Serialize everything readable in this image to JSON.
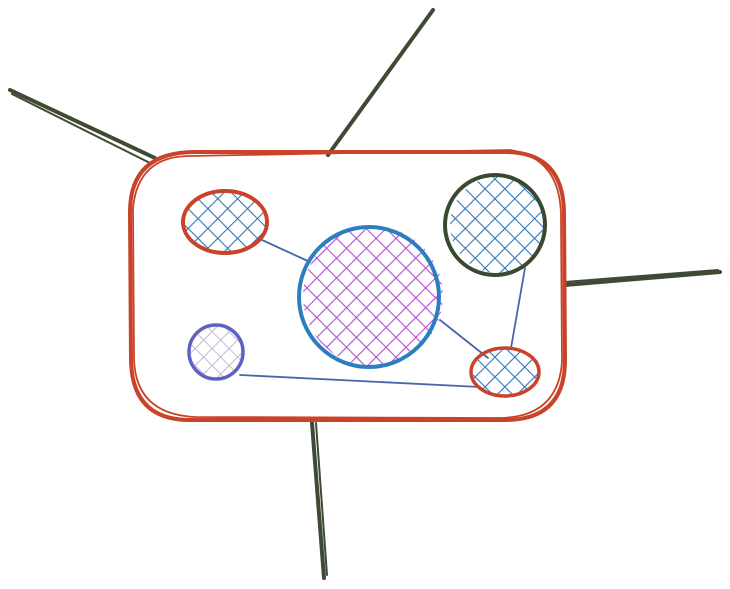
{
  "colors": {
    "background": "#ffffff",
    "frame_stroke": "#c9432a",
    "spike_stroke": "#3f4a34",
    "connector_stroke": "#4567a8",
    "hatch_blue": "#2f78b8",
    "hatch_purple": "#b14fd0",
    "hatch_lavender": "#b8b4cc",
    "ring_red": "#c9432a",
    "ring_blue": "#2c7fbf",
    "ring_dark": "#3a4a30",
    "ring_indigo": "#5d62c2"
  },
  "nodes": [
    {
      "id": "node-top-left",
      "fill": "hatch_blue",
      "ring": "ring_red"
    },
    {
      "id": "node-center",
      "fill": "hatch_purple",
      "ring": "ring_blue"
    },
    {
      "id": "node-top-right",
      "fill": "hatch_blue",
      "ring": "ring_dark"
    },
    {
      "id": "node-bottom-left",
      "fill": "hatch_lavender",
      "ring": "ring_indigo"
    },
    {
      "id": "node-bottom-right",
      "fill": "hatch_blue",
      "ring": "ring_red"
    }
  ],
  "edges": [
    {
      "from": "node-top-left",
      "to": "node-center"
    },
    {
      "from": "node-center",
      "to": "node-bottom-right"
    },
    {
      "from": "node-top-right",
      "to": "node-bottom-right"
    },
    {
      "from": "node-bottom-left",
      "to": "node-bottom-right"
    }
  ]
}
